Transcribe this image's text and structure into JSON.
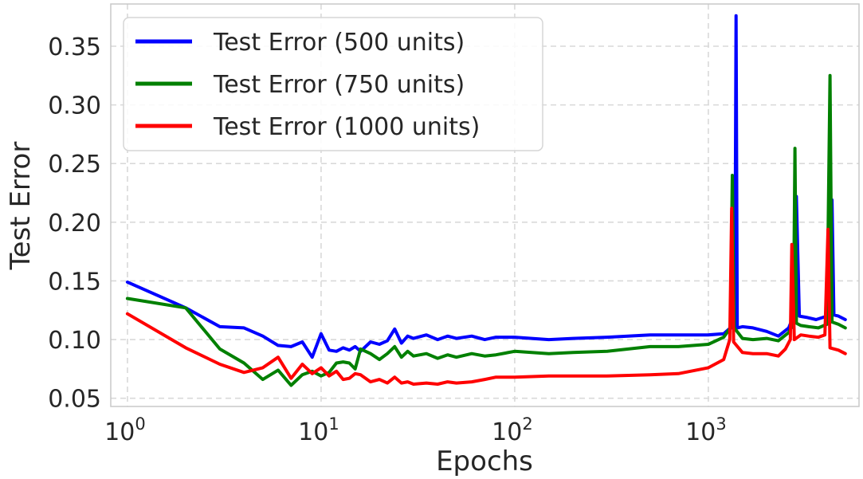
{
  "chart_data": {
    "type": "line",
    "title": "",
    "xlabel": "Epochs",
    "ylabel": "Test Error",
    "xscale": "log",
    "xlim": [
      0.82,
      6000
    ],
    "ylim": [
      0.043,
      0.386
    ],
    "grid": true,
    "legend_position": "top-left",
    "x_ticks": [
      {
        "value": 1,
        "base": "10",
        "exp": "0"
      },
      {
        "value": 10,
        "base": "10",
        "exp": "1"
      },
      {
        "value": 100,
        "base": "10",
        "exp": "2"
      },
      {
        "value": 1000,
        "base": "10",
        "exp": "3"
      }
    ],
    "y_ticks": [
      {
        "value": 0.05,
        "label": "0.05"
      },
      {
        "value": 0.1,
        "label": "0.10"
      },
      {
        "value": 0.15,
        "label": "0.15"
      },
      {
        "value": 0.2,
        "label": "0.20"
      },
      {
        "value": 0.25,
        "label": "0.25"
      },
      {
        "value": 0.3,
        "label": "0.30"
      },
      {
        "value": 0.35,
        "label": "0.35"
      }
    ],
    "series": [
      {
        "name": "Test Error (500 units)",
        "color": "#0000ff",
        "points": [
          [
            1,
            0.149
          ],
          [
            2,
            0.127
          ],
          [
            3,
            0.111
          ],
          [
            4,
            0.11
          ],
          [
            5,
            0.103
          ],
          [
            6,
            0.095
          ],
          [
            7,
            0.094
          ],
          [
            8,
            0.098
          ],
          [
            9,
            0.085
          ],
          [
            10,
            0.105
          ],
          [
            11,
            0.091
          ],
          [
            12,
            0.09
          ],
          [
            13,
            0.093
          ],
          [
            14,
            0.091
          ],
          [
            15,
            0.094
          ],
          [
            16,
            0.09
          ],
          [
            18,
            0.098
          ],
          [
            20,
            0.096
          ],
          [
            22,
            0.099
          ],
          [
            24,
            0.109
          ],
          [
            26,
            0.097
          ],
          [
            28,
            0.103
          ],
          [
            30,
            0.101
          ],
          [
            35,
            0.104
          ],
          [
            40,
            0.1
          ],
          [
            45,
            0.103
          ],
          [
            50,
            0.101
          ],
          [
            60,
            0.103
          ],
          [
            70,
            0.1
          ],
          [
            80,
            0.102
          ],
          [
            100,
            0.102
          ],
          [
            150,
            0.1
          ],
          [
            200,
            0.101
          ],
          [
            300,
            0.102
          ],
          [
            500,
            0.104
          ],
          [
            700,
            0.104
          ],
          [
            1000,
            0.104
          ],
          [
            1200,
            0.105
          ],
          [
            1300,
            0.11
          ],
          [
            1370,
            0.11
          ],
          [
            1390,
            0.376
          ],
          [
            1410,
            0.11
          ],
          [
            1500,
            0.111
          ],
          [
            1700,
            0.11
          ],
          [
            2000,
            0.107
          ],
          [
            2300,
            0.103
          ],
          [
            2600,
            0.11
          ],
          [
            2750,
            0.12
          ],
          [
            2850,
            0.222
          ],
          [
            2950,
            0.12
          ],
          [
            3200,
            0.119
          ],
          [
            3600,
            0.117
          ],
          [
            4100,
            0.12
          ],
          [
            4350,
            0.219
          ],
          [
            4450,
            0.121
          ],
          [
            4700,
            0.12
          ],
          [
            5100,
            0.117
          ]
        ]
      },
      {
        "name": "Test Error (750 units)",
        "color": "#008000",
        "points": [
          [
            1,
            0.135
          ],
          [
            2,
            0.127
          ],
          [
            3,
            0.092
          ],
          [
            4,
            0.08
          ],
          [
            5,
            0.066
          ],
          [
            6,
            0.074
          ],
          [
            7,
            0.061
          ],
          [
            8,
            0.07
          ],
          [
            9,
            0.073
          ],
          [
            10,
            0.069
          ],
          [
            11,
            0.072
          ],
          [
            12,
            0.08
          ],
          [
            13,
            0.081
          ],
          [
            14,
            0.08
          ],
          [
            15,
            0.075
          ],
          [
            16,
            0.092
          ],
          [
            18,
            0.088
          ],
          [
            20,
            0.083
          ],
          [
            22,
            0.088
          ],
          [
            24,
            0.094
          ],
          [
            26,
            0.085
          ],
          [
            28,
            0.09
          ],
          [
            30,
            0.086
          ],
          [
            35,
            0.088
          ],
          [
            40,
            0.084
          ],
          [
            45,
            0.087
          ],
          [
            50,
            0.085
          ],
          [
            60,
            0.088
          ],
          [
            70,
            0.086
          ],
          [
            80,
            0.087
          ],
          [
            100,
            0.09
          ],
          [
            150,
            0.088
          ],
          [
            200,
            0.089
          ],
          [
            300,
            0.09
          ],
          [
            500,
            0.094
          ],
          [
            700,
            0.094
          ],
          [
            1000,
            0.096
          ],
          [
            1200,
            0.102
          ],
          [
            1300,
            0.11
          ],
          [
            1330,
            0.24
          ],
          [
            1360,
            0.11
          ],
          [
            1500,
            0.101
          ],
          [
            1700,
            0.1
          ],
          [
            2000,
            0.101
          ],
          [
            2300,
            0.099
          ],
          [
            2600,
            0.106
          ],
          [
            2750,
            0.114
          ],
          [
            2800,
            0.263
          ],
          [
            2850,
            0.114
          ],
          [
            3000,
            0.112
          ],
          [
            3300,
            0.111
          ],
          [
            3700,
            0.11
          ],
          [
            4100,
            0.113
          ],
          [
            4250,
            0.325
          ],
          [
            4350,
            0.115
          ],
          [
            4700,
            0.113
          ],
          [
            5100,
            0.11
          ]
        ]
      },
      {
        "name": "Test Error (1000 units)",
        "color": "#ff0000",
        "points": [
          [
            1,
            0.122
          ],
          [
            2,
            0.093
          ],
          [
            3,
            0.079
          ],
          [
            4,
            0.072
          ],
          [
            5,
            0.076
          ],
          [
            6,
            0.085
          ],
          [
            7,
            0.067
          ],
          [
            8,
            0.079
          ],
          [
            9,
            0.071
          ],
          [
            10,
            0.076
          ],
          [
            11,
            0.069
          ],
          [
            12,
            0.073
          ],
          [
            13,
            0.066
          ],
          [
            14,
            0.067
          ],
          [
            15,
            0.071
          ],
          [
            16,
            0.07
          ],
          [
            18,
            0.064
          ],
          [
            20,
            0.066
          ],
          [
            22,
            0.063
          ],
          [
            24,
            0.068
          ],
          [
            26,
            0.063
          ],
          [
            28,
            0.064
          ],
          [
            30,
            0.062
          ],
          [
            35,
            0.063
          ],
          [
            40,
            0.062
          ],
          [
            45,
            0.064
          ],
          [
            50,
            0.063
          ],
          [
            60,
            0.064
          ],
          [
            70,
            0.066
          ],
          [
            80,
            0.068
          ],
          [
            100,
            0.068
          ],
          [
            150,
            0.069
          ],
          [
            200,
            0.069
          ],
          [
            300,
            0.069
          ],
          [
            500,
            0.07
          ],
          [
            700,
            0.071
          ],
          [
            1000,
            0.076
          ],
          [
            1200,
            0.083
          ],
          [
            1290,
            0.1
          ],
          [
            1320,
            0.212
          ],
          [
            1350,
            0.098
          ],
          [
            1500,
            0.089
          ],
          [
            1700,
            0.088
          ],
          [
            2000,
            0.088
          ],
          [
            2300,
            0.086
          ],
          [
            2500,
            0.092
          ],
          [
            2650,
            0.1
          ],
          [
            2700,
            0.181
          ],
          [
            2780,
            0.1
          ],
          [
            3000,
            0.104
          ],
          [
            3300,
            0.103
          ],
          [
            3700,
            0.102
          ],
          [
            4000,
            0.104
          ],
          [
            4150,
            0.194
          ],
          [
            4250,
            0.093
          ],
          [
            4700,
            0.091
          ],
          [
            5100,
            0.088
          ]
        ]
      }
    ]
  }
}
